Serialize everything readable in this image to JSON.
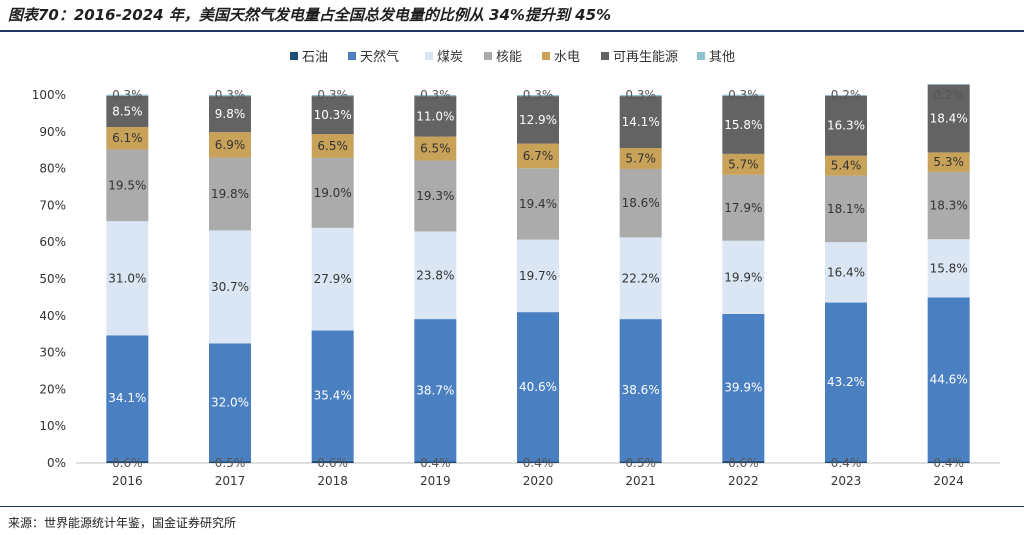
{
  "title": "图表70：2016-2024 年，美国天然气发电量占全国总发电量的比例从 34%提升到 45%",
  "source": "来源：世界能源统计年鉴，国金证券研究所",
  "chart_data": {
    "type": "bar",
    "stacked": true,
    "categories": [
      "2016",
      "2017",
      "2018",
      "2019",
      "2020",
      "2021",
      "2022",
      "2023",
      "2024"
    ],
    "ylim": [
      0,
      100
    ],
    "yticks": [
      "0%",
      "10%",
      "20%",
      "30%",
      "40%",
      "50%",
      "60%",
      "70%",
      "80%",
      "90%",
      "100%"
    ],
    "legend_position": "top",
    "series": [
      {
        "name": "石油",
        "color": "#1f4e79",
        "label_color": "#555555",
        "values": [
          0.6,
          0.5,
          0.6,
          0.4,
          0.4,
          0.5,
          0.6,
          0.4,
          0.4
        ],
        "labels": [
          "0.6%",
          "0.5%",
          "0.6%",
          "0.4%",
          "0.4%",
          "0.5%",
          "0.6%",
          "0.4%",
          "0.4%"
        ]
      },
      {
        "name": "天然气",
        "color": "#4a7fc1",
        "label_color": "#ffffff",
        "values": [
          34.1,
          32.0,
          35.4,
          38.7,
          40.6,
          38.6,
          39.9,
          43.2,
          44.6
        ],
        "labels": [
          "34.1%",
          "32.0%",
          "35.4%",
          "38.7%",
          "40.6%",
          "38.6%",
          "39.9%",
          "43.2%",
          "44.6%"
        ]
      },
      {
        "name": "煤炭",
        "color": "#dbe6f4",
        "label_color": "#333333",
        "values": [
          31.0,
          30.7,
          27.9,
          23.8,
          19.7,
          22.2,
          19.9,
          16.4,
          15.8
        ],
        "labels": [
          "31.0%",
          "30.7%",
          "27.9%",
          "23.8%",
          "19.7%",
          "22.2%",
          "19.9%",
          "16.4%",
          "15.8%"
        ]
      },
      {
        "name": "核能",
        "color": "#ababab",
        "label_color": "#333333",
        "values": [
          19.5,
          19.8,
          19.0,
          19.3,
          19.4,
          18.6,
          17.9,
          18.1,
          18.3
        ],
        "labels": [
          "19.5%",
          "19.8%",
          "19.0%",
          "19.3%",
          "19.4%",
          "18.6%",
          "17.9%",
          "18.1%",
          "18.3%"
        ]
      },
      {
        "name": "水电",
        "color": "#c9a25a",
        "label_color": "#333333",
        "values": [
          6.1,
          6.9,
          6.5,
          6.5,
          6.7,
          5.7,
          5.7,
          5.4,
          5.3
        ],
        "labels": [
          "6.1%",
          "6.9%",
          "6.5%",
          "6.5%",
          "6.7%",
          "5.7%",
          "5.7%",
          "5.4%",
          "5.3%"
        ]
      },
      {
        "name": "可再生能源",
        "color": "#636363",
        "label_color": "#ffffff",
        "values": [
          8.5,
          9.8,
          10.3,
          11.0,
          12.9,
          14.1,
          15.8,
          16.3,
          18.4
        ],
        "labels": [
          "8.5%",
          "9.8%",
          "10.3%",
          "11.0%",
          "12.9%",
          "14.1%",
          "15.8%",
          "16.3%",
          "18.4%"
        ]
      },
      {
        "name": "其他",
        "color": "#8ec2cf",
        "label_color": "#555555",
        "values": [
          0.3,
          0.3,
          0.3,
          0.3,
          0.3,
          0.3,
          0.3,
          0.2,
          0.2
        ],
        "labels": [
          "0.3%",
          "0.3%",
          "0.3%",
          "0.3%",
          "0.3%",
          "0.3%",
          "0.3%",
          "0.2%",
          "0.2%"
        ]
      }
    ]
  }
}
